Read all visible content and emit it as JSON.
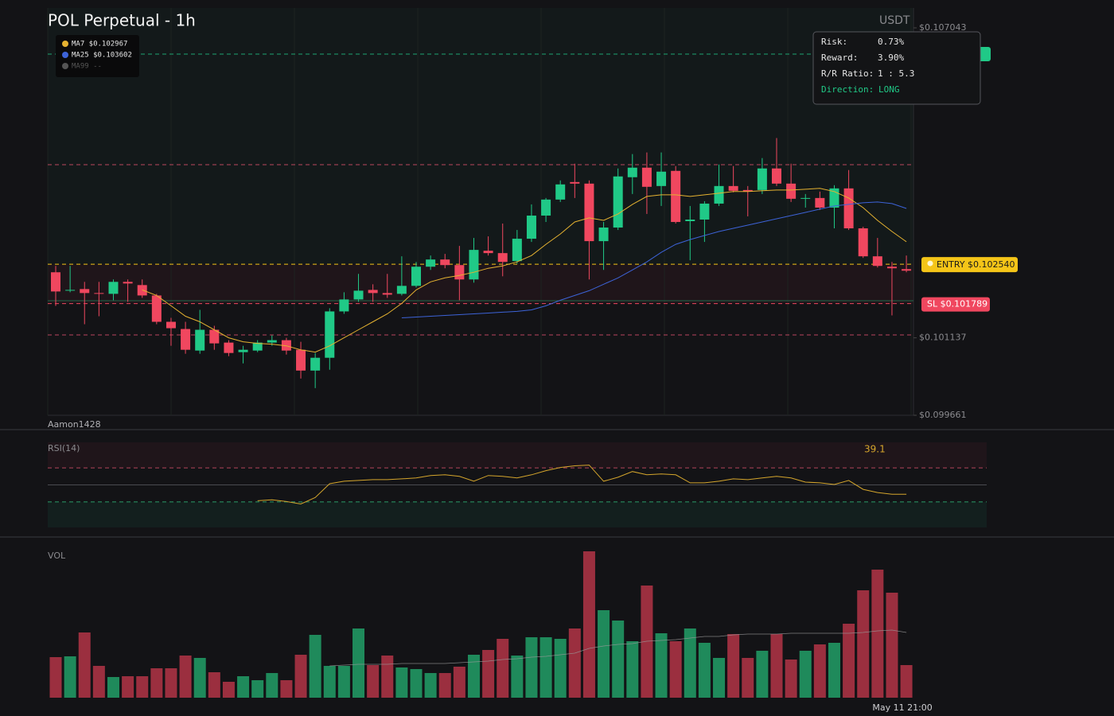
{
  "chart_data": [
    {
      "type": "candlestick",
      "title": "POL Perpetual - 1h",
      "currency": "USDT",
      "watermark": "Aamon1428",
      "up_color": "#20c987",
      "down_color": "#f0475f",
      "ylim": [
        0.099661,
        0.107043
      ],
      "yticks": [
        {
          "value": 0.099661,
          "label": "$0.099661"
        },
        {
          "value": 0.101137,
          "label": "$0.101137"
        },
        {
          "value": 0.107043,
          "label": "$0.107043"
        }
      ],
      "open": [
        0.102386,
        0.102035,
        0.102066,
        0.10199,
        0.101975,
        0.102203,
        0.102142,
        0.101944,
        0.101442,
        0.101305,
        0.100894,
        0.10129,
        0.101046,
        0.100864,
        0.100894,
        0.101046,
        0.101092,
        0.100909,
        0.100513,
        0.100757,
        0.10164,
        0.101868,
        0.10205,
        0.10199,
        0.101975,
        0.102127,
        0.102492,
        0.102629,
        0.102523,
        0.102249,
        0.102796,
        0.102751,
        0.102599,
        0.103025,
        0.103466,
        0.103771,
        0.104105,
        0.104075,
        0.102979,
        0.103238,
        0.104197,
        0.104379,
        0.104029,
        0.104318,
        0.10336,
        0.10339,
        0.103694,
        0.104029,
        0.103953,
        0.103953,
        0.104364,
        0.104075,
        0.103786,
        0.103801,
        0.103618,
        0.103984,
        0.103223,
        0.10269,
        0.102492,
        0.102446
      ],
      "high": [
        0.102507,
        0.102507,
        0.102203,
        0.102203,
        0.102249,
        0.102249,
        0.102249,
        0.101975,
        0.101518,
        0.101442,
        0.10167,
        0.101366,
        0.101092,
        0.100985,
        0.101092,
        0.101183,
        0.101137,
        0.101061,
        0.100848,
        0.101701,
        0.102005,
        0.102355,
        0.102157,
        0.102355,
        0.10269,
        0.102583,
        0.102705,
        0.102736,
        0.102888,
        0.10304,
        0.10307,
        0.103314,
        0.103192,
        0.103679,
        0.103801,
        0.104136,
        0.104455,
        0.104136,
        0.103344,
        0.104364,
        0.104638,
        0.104669,
        0.104669,
        0.10441,
        0.103649,
        0.10374,
        0.10444,
        0.10441,
        0.104029,
        0.104562,
        0.104943,
        0.104455,
        0.103877,
        0.103923,
        0.104045,
        0.104334,
        0.103253,
        0.10304,
        0.102583,
        0.102705
      ],
      "low": [
        0.101746,
        0.102005,
        0.101396,
        0.101548,
        0.101853,
        0.101822,
        0.101898,
        0.101396,
        0.100985,
        0.100833,
        0.100833,
        0.100909,
        0.100787,
        0.10065,
        0.100864,
        0.100985,
        0.100818,
        0.100361,
        0.100179,
        0.100529,
        0.101594,
        0.101822,
        0.101822,
        0.101898,
        0.101944,
        0.102096,
        0.102431,
        0.102462,
        0.101853,
        0.102188,
        0.102705,
        0.102309,
        0.102553,
        0.102964,
        0.103344,
        0.103725,
        0.103801,
        0.102249,
        0.102431,
        0.103192,
        0.103877,
        0.103497,
        0.103649,
        0.103314,
        0.102614,
        0.102964,
        0.103649,
        0.103908,
        0.103451,
        0.103877,
        0.104029,
        0.103725,
        0.103618,
        0.103573,
        0.103223,
        0.103192,
        0.102659,
        0.102477,
        0.101564,
        0.102386
      ],
      "close": [
        0.10202,
        0.10205,
        0.10199,
        0.101975,
        0.102203,
        0.102172,
        0.101944,
        0.101442,
        0.10132,
        0.100909,
        0.10129,
        0.101031,
        0.100848,
        0.100909,
        0.101046,
        0.101092,
        0.100894,
        0.100513,
        0.100757,
        0.10164,
        0.101868,
        0.102035,
        0.10199,
        0.101959,
        0.102127,
        0.102492,
        0.102629,
        0.102523,
        0.102249,
        0.102812,
        0.102751,
        0.102583,
        0.103025,
        0.103466,
        0.103771,
        0.10406,
        0.104075,
        0.102979,
        0.103238,
        0.104212,
        0.104379,
        0.104014,
        0.104303,
        0.103344,
        0.10339,
        0.103694,
        0.104029,
        0.103938,
        0.103923,
        0.104364,
        0.104075,
        0.103786,
        0.103801,
        0.103618,
        0.103984,
        0.103223,
        0.10269,
        0.102507,
        0.102462,
        0.102416
      ],
      "series": [
        {
          "name": "MA7 $0.102967",
          "color": "#e5b231",
          "values": [
            null,
            null,
            null,
            null,
            null,
            null,
            0.10205,
            0.101944,
            0.101746,
            0.101548,
            0.101442,
            0.10129,
            0.101137,
            0.101061,
            0.101031,
            0.101016,
            0.100985,
            0.100909,
            0.100864,
            0.100985,
            0.101137,
            0.10129,
            0.101442,
            0.101594,
            0.101792,
            0.10205,
            0.102203,
            0.102279,
            0.102325,
            0.102386,
            0.102462,
            0.102507,
            0.102583,
            0.102705,
            0.102918,
            0.103116,
            0.103344,
            0.103421,
            0.103375,
            0.103497,
            0.103679,
            0.103831,
            0.103862,
            0.103862,
            0.103831,
            0.103862,
            0.103892,
            0.103923,
            0.103923,
            0.103938,
            0.103953,
            0.103953,
            0.103968,
            0.103984,
            0.103923,
            0.103801,
            0.103618,
            0.103375,
            0.103162,
            0.102967
          ]
        },
        {
          "name": "MA25 $0.103602",
          "color": "#3d63d8",
          "values": [
            null,
            null,
            null,
            null,
            null,
            null,
            null,
            null,
            null,
            null,
            null,
            null,
            null,
            null,
            null,
            null,
            null,
            null,
            null,
            null,
            null,
            null,
            null,
            null,
            0.101518,
            0.101533,
            0.101548,
            0.101564,
            0.101579,
            0.101594,
            0.101609,
            0.101625,
            0.10164,
            0.10167,
            0.101746,
            0.101853,
            0.101944,
            0.102035,
            0.102157,
            0.102279,
            0.102431,
            0.102583,
            0.102766,
            0.102918,
            0.10301,
            0.103086,
            0.103162,
            0.103223,
            0.103284,
            0.103344,
            0.103405,
            0.103466,
            0.103527,
            0.103588,
            0.103649,
            0.103679,
            0.10371,
            0.103725,
            0.103694,
            0.103602
          ]
        },
        {
          "name": "MA99 --",
          "color": "#555555",
          "values": [
            null,
            null,
            null,
            null,
            null,
            null,
            null,
            null,
            null,
            null,
            null,
            null,
            null,
            null,
            null,
            null,
            null,
            null,
            null,
            null,
            null,
            null,
            null,
            null,
            null,
            null,
            null,
            null,
            null,
            null,
            null,
            null,
            null,
            null,
            null,
            null,
            null,
            null,
            null,
            null,
            null,
            null,
            null,
            null,
            null,
            null,
            null,
            null,
            null,
            null,
            null,
            null,
            null,
            null,
            null,
            null,
            null,
            null,
            null,
            null
          ]
        }
      ],
      "levels": [
        {
          "value": 0.104436,
          "color": "#e5536f"
        },
        {
          "value": 0.101192,
          "color": "#e5536f"
        },
        {
          "value": 0.101844,
          "color": "#2a9d6a"
        }
      ],
      "take_profit": {
        "value": 0.106543,
        "color": "#20c987"
      },
      "entry": {
        "value": 0.10254,
        "label": "ENTRY $0.102540",
        "color": "#f5c518"
      },
      "stop_loss": {
        "value": 0.101789,
        "label": "SL $0.101789",
        "color": "#f0475f"
      },
      "risk_panel": {
        "rows": [
          [
            "Risk:",
            "0.73%"
          ],
          [
            "Reward:",
            "3.90%"
          ],
          [
            "R/R Ratio:",
            "1 : 5.3"
          ],
          [
            "Direction:",
            "LONG"
          ]
        ]
      }
    },
    {
      "type": "line",
      "title": "RSI(14)",
      "color": "#d4a52c",
      "ylim": [
        0,
        100
      ],
      "overbought": 70,
      "mid": 50,
      "oversold": 30,
      "last_value": 39.1,
      "values": [
        null,
        null,
        null,
        null,
        null,
        null,
        null,
        null,
        null,
        null,
        null,
        null,
        null,
        null,
        31.4,
        32.4,
        30.5,
        27.6,
        35.2,
        51.4,
        54.3,
        55.2,
        56.2,
        56.2,
        57.1,
        58.1,
        61.0,
        61.9,
        60.0,
        54.3,
        61.0,
        60.0,
        58.1,
        61.9,
        66.7,
        70.5,
        72.4,
        73.3,
        54.3,
        59.0,
        65.7,
        61.9,
        62.9,
        61.9,
        52.4,
        52.4,
        54.3,
        57.1,
        56.2,
        58.1,
        60.0,
        58.1,
        53.3,
        52.4,
        50.5,
        55.2,
        44.8,
        41.0,
        39.1,
        39.1
      ]
    },
    {
      "type": "bar",
      "title": "VOL",
      "ylim": [
        0,
        190
      ],
      "up_color": "#1f8a5b",
      "down_color": "#9b2f3f",
      "ma_color": "#9a9a9a",
      "categories": [
        null,
        null,
        null,
        null,
        null,
        null,
        null,
        null,
        null,
        null,
        null,
        null,
        null,
        null,
        null,
        null,
        null,
        null,
        null,
        null,
        null,
        null,
        null,
        null,
        null,
        null,
        null,
        null,
        null,
        null,
        null,
        null,
        null,
        null,
        null,
        null,
        null,
        null,
        null,
        null,
        null,
        null,
        null,
        null,
        null,
        null,
        null,
        null,
        null,
        null,
        null,
        null,
        null,
        null,
        null,
        null,
        null,
        null,
        null,
        "May 11 21:00"
      ],
      "values": [
        51,
        52,
        82,
        40,
        26,
        27,
        27,
        37,
        37,
        53,
        50,
        32,
        20,
        27,
        22,
        31,
        22,
        54,
        79,
        40,
        40,
        87,
        41,
        53,
        38,
        36,
        31,
        31,
        39,
        54,
        60,
        74,
        53,
        76,
        76,
        74,
        87,
        184,
        110,
        97,
        71,
        141,
        81,
        71,
        87,
        69,
        50,
        80,
        50,
        59,
        80,
        48,
        59,
        67,
        69,
        93,
        135,
        161,
        132,
        41
      ],
      "ma_values": [
        null,
        null,
        null,
        null,
        null,
        null,
        null,
        null,
        null,
        null,
        null,
        null,
        null,
        null,
        null,
        null,
        null,
        null,
        null,
        40,
        41,
        42,
        42,
        42,
        43,
        43,
        43,
        43,
        44,
        45,
        46,
        48,
        49,
        51,
        52,
        54,
        56,
        62,
        65,
        67,
        68,
        71,
        72,
        73,
        75,
        77,
        77,
        79,
        80,
        80,
        80,
        81,
        81,
        81,
        81,
        81,
        82,
        84,
        85,
        82
      ]
    }
  ]
}
